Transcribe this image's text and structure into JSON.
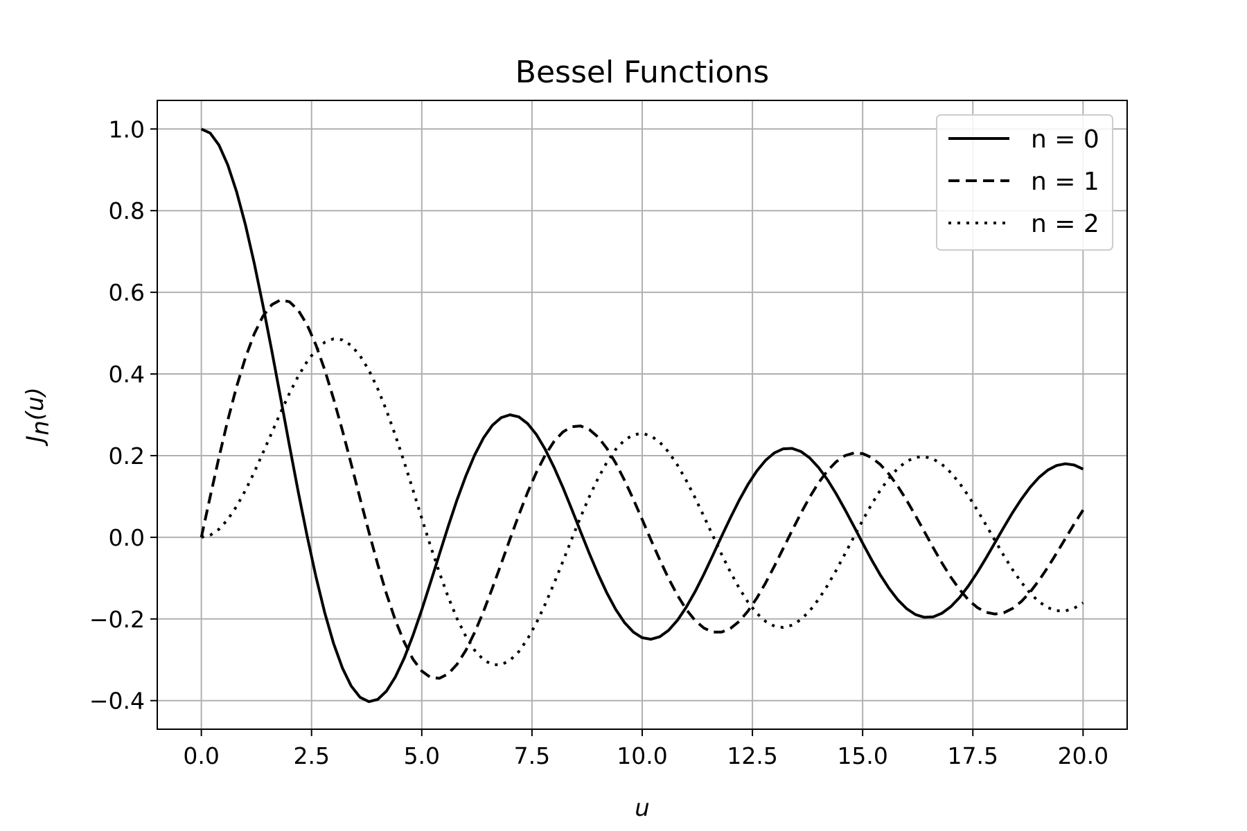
{
  "chart_data": {
    "type": "line",
    "title": "Bessel Functions",
    "xlabel": "u",
    "ylabel": "J_n(u)",
    "ylabel_main": "J",
    "ylabel_sub": "n",
    "ylabel_arg": "(u)",
    "xlim": [
      -1.0,
      21.0
    ],
    "ylim": [
      -0.47,
      1.07
    ],
    "xticks": [
      0.0,
      2.5,
      5.0,
      7.5,
      10.0,
      12.5,
      15.0,
      17.5,
      20.0
    ],
    "xtick_labels": [
      "0.0",
      "2.5",
      "5.0",
      "7.5",
      "10.0",
      "12.5",
      "15.0",
      "17.5",
      "20.0"
    ],
    "yticks": [
      -0.4,
      -0.2,
      0.0,
      0.2,
      0.4,
      0.6,
      0.8,
      1.0
    ],
    "ytick_labels": [
      "−0.4",
      "−0.2",
      "0.0",
      "0.2",
      "0.4",
      "0.6",
      "0.8",
      "1.0"
    ],
    "grid": true,
    "legend_position": "top-right",
    "x_range": [
      0,
      20
    ],
    "series": [
      {
        "name": "n = 0",
        "var": "n",
        "order": 0,
        "style": "solid",
        "color": "#000000"
      },
      {
        "name": "n = 1",
        "var": "n",
        "order": 1,
        "style": "dashed",
        "color": "#000000"
      },
      {
        "name": "n = 2",
        "var": "n",
        "order": 2,
        "style": "dotted",
        "color": "#000000"
      }
    ]
  }
}
